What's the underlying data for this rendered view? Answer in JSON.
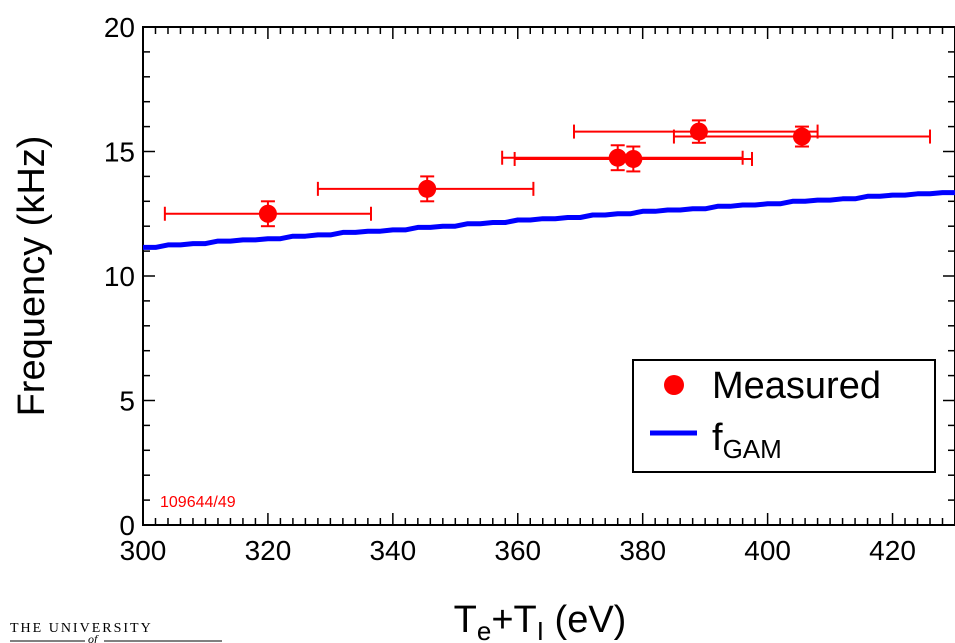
{
  "chart_data": {
    "type": "scatter",
    "xlabel_main": "T",
    "xlabel_sub1": "e",
    "xlabel_plus": "+T",
    "xlabel_sub2": "I",
    "xlabel_unit": " (eV)",
    "ylabel": "Frequency (kHz)",
    "xlim": [
      300,
      430
    ],
    "ylim": [
      0,
      20
    ],
    "x_ticks": [
      300,
      320,
      340,
      360,
      380,
      400,
      420
    ],
    "y_ticks": [
      0,
      5,
      10,
      15,
      20
    ],
    "annotation": "109644/49",
    "legend": {
      "placement": "bottom-right",
      "measured_label": "Measured",
      "fgam_label_main": "f",
      "fgam_label_sub": "GAM"
    },
    "series": [
      {
        "name": "Measured",
        "color": "#ff0000",
        "points": [
          {
            "x": 320,
            "y": 12.5,
            "xerr": [
              303.5,
              336.5
            ],
            "yerr": 0.5
          },
          {
            "x": 345.5,
            "y": 13.5,
            "xerr": [
              328,
              362.5
            ],
            "yerr": 0.5
          },
          {
            "x": 376,
            "y": 14.75,
            "xerr": [
              357.5,
              396
            ],
            "yerr": 0.5
          },
          {
            "x": 378.5,
            "y": 14.7,
            "xerr": [
              359.5,
              397.5
            ],
            "yerr": 0.5
          },
          {
            "x": 389,
            "y": 15.8,
            "xerr": [
              369,
              408
            ],
            "yerr": 0.45
          },
          {
            "x": 405.5,
            "y": 15.6,
            "xerr": [
              385,
              426
            ],
            "yerr": 0.4
          }
        ]
      },
      {
        "name": "fGAM",
        "color": "#0000ff",
        "x": [
          300,
          302,
          304,
          306,
          308,
          310,
          312,
          314,
          316,
          318,
          320,
          322,
          324,
          326,
          328,
          330,
          332,
          334,
          336,
          338,
          340,
          342,
          344,
          346,
          348,
          350,
          352,
          354,
          356,
          358,
          360,
          362,
          364,
          366,
          368,
          370,
          372,
          374,
          376,
          378,
          380,
          382,
          384,
          386,
          388,
          390,
          392,
          394,
          396,
          398,
          400,
          402,
          404,
          406,
          408,
          410,
          412,
          414,
          416,
          418,
          420,
          422,
          424,
          426,
          428,
          430
        ],
        "values": [
          11.15,
          11.15,
          11.25,
          11.25,
          11.3,
          11.3,
          11.4,
          11.4,
          11.45,
          11.45,
          11.5,
          11.5,
          11.6,
          11.6,
          11.65,
          11.65,
          11.75,
          11.75,
          11.8,
          11.8,
          11.85,
          11.85,
          11.95,
          11.95,
          12.0,
          12.0,
          12.1,
          12.1,
          12.15,
          12.15,
          12.25,
          12.25,
          12.3,
          12.3,
          12.35,
          12.35,
          12.45,
          12.45,
          12.5,
          12.5,
          12.6,
          12.6,
          12.65,
          12.65,
          12.7,
          12.7,
          12.8,
          12.8,
          12.85,
          12.85,
          12.9,
          12.9,
          13.0,
          13.0,
          13.05,
          13.05,
          13.1,
          13.1,
          13.2,
          13.2,
          13.25,
          13.25,
          13.3,
          13.3,
          13.35,
          13.35
        ]
      }
    ]
  },
  "logo": {
    "line1": "THE UNIVERSITY",
    "line2": "of"
  }
}
